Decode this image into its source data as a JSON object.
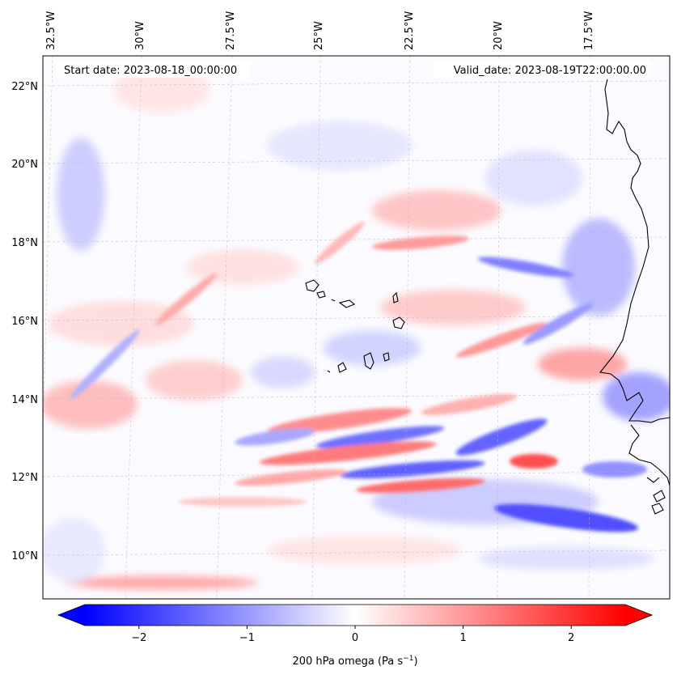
{
  "map": {
    "annotations": {
      "start": "Start date: 2023-08-18_00:00:00",
      "valid": "Valid_date: 2023-08-19T22:00:00.00"
    },
    "lon_labels": [
      "32.5°W",
      "30°W",
      "27.5°W",
      "25°W",
      "22.5°W",
      "20°W",
      "17.5°W"
    ],
    "lat_labels": [
      "22°N",
      "20°N",
      "18°N",
      "16°N",
      "14°N",
      "12°N",
      "10°N"
    ],
    "colorbar": {
      "label": "200 hPa omega (Pa s",
      "label_sup": "−1",
      "label_end": ")",
      "ticks": [
        "−2",
        "−1",
        "0",
        "1",
        "2"
      ],
      "tick_values": [
        -2,
        -1,
        0,
        1,
        2
      ],
      "range": [
        -2.5,
        2.5
      ],
      "colormap": "bwr",
      "extend": "both",
      "color_negative": "#0000ff",
      "color_zero": "#ffffff",
      "color_positive": "#ff0000"
    }
  }
}
